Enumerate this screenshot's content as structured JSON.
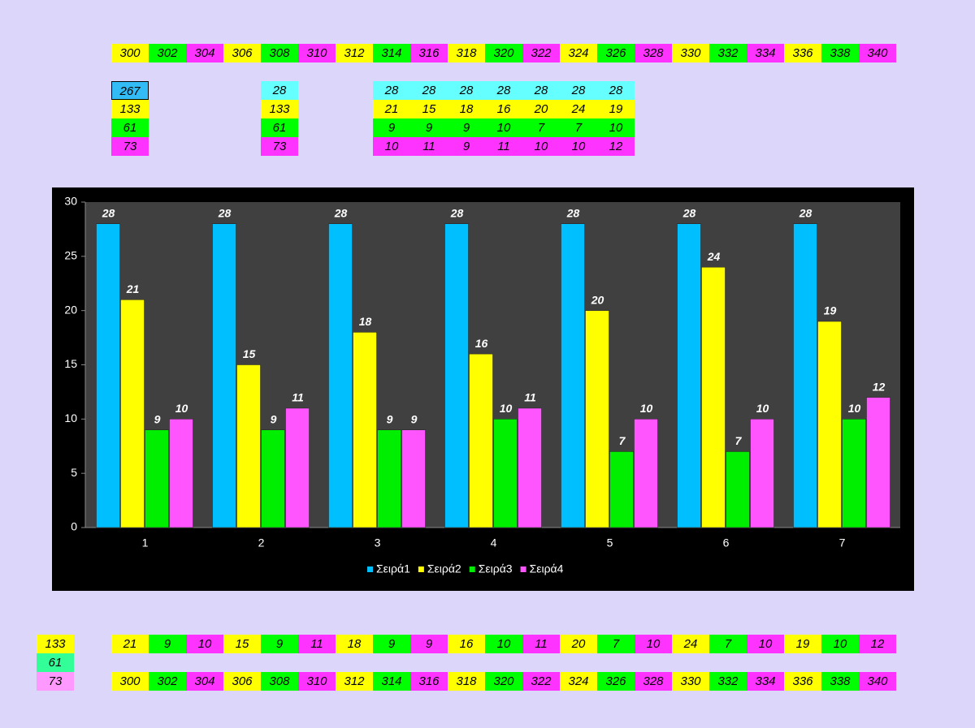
{
  "top_row": [
    300,
    302,
    304,
    306,
    308,
    310,
    312,
    314,
    316,
    318,
    320,
    322,
    324,
    326,
    328,
    330,
    332,
    334,
    336,
    338,
    340
  ],
  "summary_left": [
    267,
    133,
    61,
    73
  ],
  "summary_mid": [
    28,
    133,
    61,
    73
  ],
  "table": [
    [
      28,
      28,
      28,
      28,
      28,
      28,
      28
    ],
    [
      21,
      15,
      18,
      16,
      20,
      24,
      19
    ],
    [
      9,
      9,
      9,
      10,
      7,
      7,
      10
    ],
    [
      10,
      11,
      9,
      11,
      10,
      10,
      12
    ]
  ],
  "chart_data": {
    "type": "bar",
    "categories": [
      "1",
      "2",
      "3",
      "4",
      "5",
      "6",
      "7"
    ],
    "series": [
      {
        "name": "Σειρά1",
        "color": "#00bfff",
        "values": [
          28,
          28,
          28,
          28,
          28,
          28,
          28
        ]
      },
      {
        "name": "Σειρά2",
        "color": "#ffff00",
        "values": [
          21,
          15,
          18,
          16,
          20,
          24,
          19
        ]
      },
      {
        "name": "Σειρά3",
        "color": "#00ee00",
        "values": [
          9,
          9,
          9,
          10,
          7,
          7,
          10
        ]
      },
      {
        "name": "Σειρά4",
        "color": "#ff55ff",
        "values": [
          10,
          11,
          9,
          11,
          10,
          10,
          12
        ]
      }
    ],
    "ylim": [
      0,
      30
    ],
    "yticks": [
      0,
      5,
      10,
      15,
      20,
      25,
      30
    ],
    "legend": "bottom"
  },
  "bottom_left": [
    133,
    61,
    73
  ],
  "bottom_values": [
    21,
    9,
    10,
    15,
    9,
    11,
    18,
    9,
    9,
    16,
    10,
    11,
    20,
    7,
    10,
    24,
    7,
    10,
    19,
    10,
    12
  ],
  "bottom_row": [
    300,
    302,
    304,
    306,
    308,
    310,
    312,
    314,
    316,
    318,
    320,
    322,
    324,
    326,
    328,
    330,
    332,
    334,
    336,
    338,
    340
  ]
}
